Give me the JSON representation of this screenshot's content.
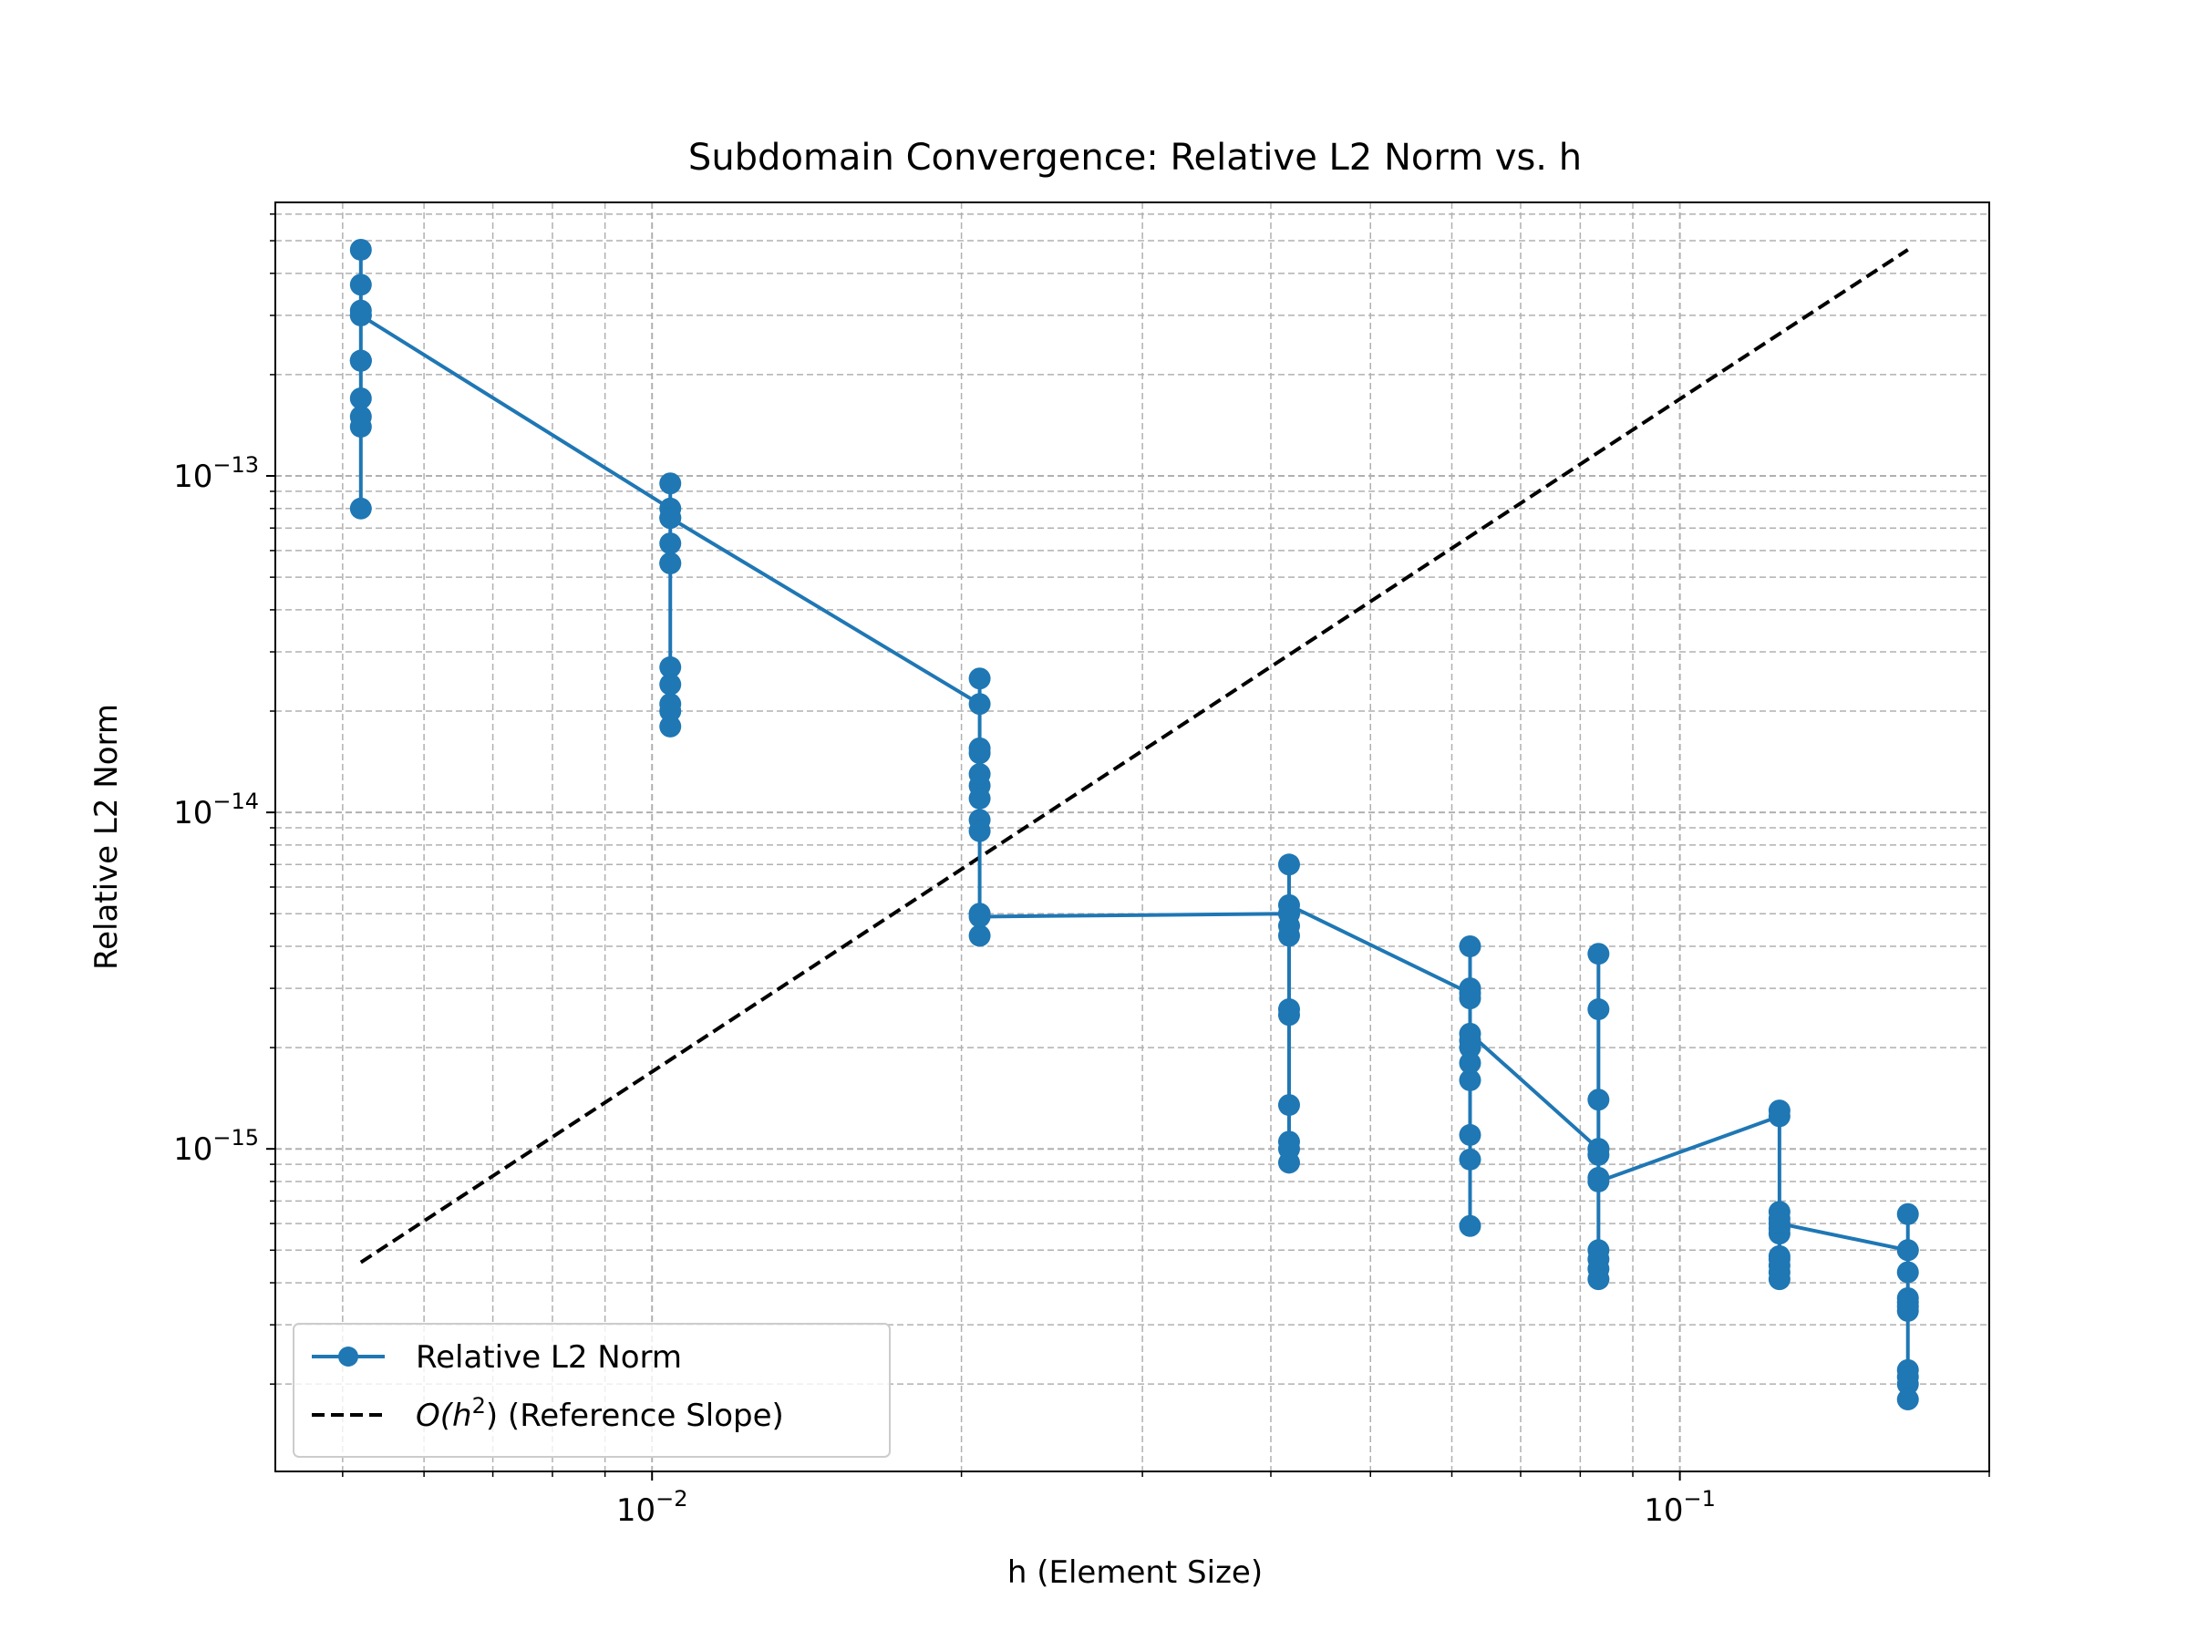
{
  "chart_data": {
    "type": "line",
    "title": "Subdomain Convergence: Relative L2 Norm vs. h",
    "xlabel": "h (Element Size)",
    "ylabel": "Relative L2 Norm",
    "xscale": "log",
    "yscale": "log",
    "xlim": [
      0.0043,
      0.2
    ],
    "ylim": [
      1.1e-16,
      6.5e-13
    ],
    "grid": "both (major and minor), dashed",
    "legend_position": "lower-left",
    "x_ticks": [
      {
        "value": 0.01,
        "base": "10",
        "exp": "−2"
      },
      {
        "value": 0.1,
        "base": "10",
        "exp": "−1"
      }
    ],
    "y_ticks": [
      {
        "value": 1e-13,
        "base": "10",
        "exp": "−13"
      },
      {
        "value": 1e-14,
        "base": "10",
        "exp": "−14"
      },
      {
        "value": 1e-15,
        "base": "10",
        "exp": "−15"
      }
    ],
    "series": [
      {
        "name": "Relative L2 Norm",
        "color": "#1f77b4",
        "marker": "circle",
        "line": "solid",
        "x": [
          0.005208,
          0.005208,
          0.005208,
          0.005208,
          0.005208,
          0.005208,
          0.005208,
          0.005208,
          0.005208,
          0.005208,
          0.005208,
          0.005208,
          0.010417,
          0.010417,
          0.010417,
          0.010417,
          0.010417,
          0.010417,
          0.010417,
          0.010417,
          0.010417,
          0.010417,
          0.010417,
          0.010417,
          0.020833,
          0.020833,
          0.020833,
          0.020833,
          0.020833,
          0.020833,
          0.020833,
          0.020833,
          0.020833,
          0.020833,
          0.020833,
          0.020833,
          0.041667,
          0.041667,
          0.041667,
          0.041667,
          0.041667,
          0.041667,
          0.041667,
          0.041667,
          0.041667,
          0.041667,
          0.041667,
          0.041667,
          0.0625,
          0.0625,
          0.0625,
          0.0625,
          0.0625,
          0.0625,
          0.0625,
          0.0625,
          0.0625,
          0.0625,
          0.0625,
          0.0625,
          0.083333,
          0.083333,
          0.083333,
          0.083333,
          0.083333,
          0.083333,
          0.083333,
          0.083333,
          0.083333,
          0.083333,
          0.083333,
          0.083333,
          0.125,
          0.125,
          0.125,
          0.125,
          0.125,
          0.125,
          0.125,
          0.125,
          0.125,
          0.125,
          0.125,
          0.125,
          0.166667,
          0.166667,
          0.166667,
          0.166667,
          0.166667,
          0.166667,
          0.166667,
          0.166667,
          0.166667,
          0.166667,
          0.166667,
          0.166667
        ],
        "y": [
          4.7e-13,
          3.7e-13,
          2.2e-13,
          1.4e-13,
          8e-14,
          1.5e-13,
          1.7e-13,
          2.2e-13,
          3e-13,
          3.1e-13,
          2.2e-13,
          3e-13,
          8e-14,
          9.5e-14,
          7.5e-14,
          5.5e-14,
          2.1e-14,
          2.7e-14,
          2.4e-14,
          1.8e-14,
          2e-14,
          5.5e-14,
          6.3e-14,
          7.5e-14,
          2.1e-14,
          2.5e-14,
          1.5e-14,
          1.2e-14,
          9.5e-15,
          8.8e-15,
          1.1e-14,
          1.3e-14,
          1.55e-14,
          5e-15,
          4.3e-15,
          4.9e-15,
          5e-15,
          7e-15,
          5e-15,
          4.3e-15,
          2.5e-15,
          2.6e-15,
          1.35e-15,
          1.05e-15,
          9.1e-16,
          1e-15,
          4.6e-15,
          5.3e-15,
          2.9e-15,
          4e-15,
          3e-15,
          2e-15,
          1.6e-15,
          1.1e-15,
          9.3e-16,
          5.9e-16,
          1.8e-15,
          2.1e-15,
          2.8e-15,
          2.2e-15,
          1e-15,
          3.8e-15,
          2.6e-15,
          1.4e-15,
          1e-15,
          8.2e-16,
          5e-16,
          4.4e-16,
          4.1e-16,
          4.7e-16,
          9.6e-16,
          8e-16,
          1.25e-15,
          1.3e-15,
          6.5e-16,
          5.8e-16,
          4.8e-16,
          4.1e-16,
          4.3e-16,
          4.5e-16,
          4.7e-16,
          5.6e-16,
          6.2e-16,
          6e-16,
          5e-16,
          6.4e-16,
          5e-16,
          4.3e-16,
          3.4e-16,
          3.3e-16,
          3.6e-16,
          2.2e-16,
          2e-16,
          1.8e-16,
          2.1e-16,
          3.5e-16
        ]
      },
      {
        "name": "O(h²) (Reference Slope)",
        "legend_prefix": "O(h",
        "legend_sup": "2",
        "legend_suffix": ") (Reference Slope)",
        "color": "#000000",
        "line": "dashed",
        "x": [
          0.005208,
          0.166667
        ],
        "y": [
          4.6e-16,
          4.7e-13
        ]
      }
    ]
  }
}
